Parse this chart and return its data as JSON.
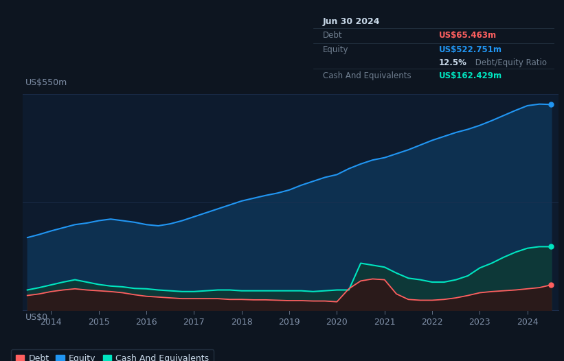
{
  "bg_color": "#0d1520",
  "plot_bg_color": "#0d1b2e",
  "ylabel_top": "US$550m",
  "ylabel_bottom": "US$0",
  "x_values": [
    2013.5,
    2013.75,
    2014.0,
    2014.25,
    2014.5,
    2014.75,
    2015.0,
    2015.25,
    2015.5,
    2015.75,
    2016.0,
    2016.25,
    2016.5,
    2016.75,
    2017.0,
    2017.25,
    2017.5,
    2017.75,
    2018.0,
    2018.25,
    2018.5,
    2018.75,
    2019.0,
    2019.25,
    2019.5,
    2019.75,
    2020.0,
    2020.25,
    2020.5,
    2020.75,
    2021.0,
    2021.25,
    2021.5,
    2021.75,
    2022.0,
    2022.25,
    2022.5,
    2022.75,
    2023.0,
    2023.25,
    2023.5,
    2023.75,
    2024.0,
    2024.25,
    2024.5
  ],
  "equity": [
    185,
    193,
    202,
    210,
    218,
    222,
    228,
    232,
    228,
    224,
    218,
    215,
    220,
    228,
    238,
    248,
    258,
    268,
    278,
    285,
    292,
    298,
    306,
    318,
    328,
    338,
    345,
    360,
    372,
    382,
    388,
    398,
    408,
    420,
    432,
    442,
    452,
    460,
    470,
    482,
    495,
    508,
    520,
    524,
    523
  ],
  "cash": [
    52,
    58,
    65,
    72,
    78,
    72,
    66,
    62,
    60,
    56,
    55,
    52,
    50,
    48,
    48,
    50,
    52,
    52,
    50,
    50,
    50,
    50,
    50,
    50,
    48,
    50,
    52,
    52,
    120,
    115,
    110,
    95,
    82,
    78,
    72,
    72,
    78,
    88,
    108,
    120,
    135,
    148,
    158,
    162,
    162
  ],
  "debt": [
    38,
    42,
    48,
    52,
    55,
    52,
    50,
    48,
    45,
    40,
    36,
    34,
    32,
    30,
    30,
    30,
    30,
    28,
    28,
    27,
    27,
    26,
    25,
    25,
    24,
    24,
    22,
    55,
    75,
    80,
    78,
    42,
    28,
    26,
    26,
    28,
    32,
    38,
    45,
    48,
    50,
    52,
    55,
    58,
    65
  ],
  "equity_color": "#2196f3",
  "equity_fill": "#0d3050",
  "cash_color": "#00e5c0",
  "cash_fill": "#0d3838",
  "debt_color": "#ff6060",
  "debt_fill": "#2a1a1a",
  "grid_color": "#1e3050",
  "text_color": "#8090a8",
  "table_bg": "#080e18",
  "table_border": "#283848",
  "info_date": "Jun 30 2024",
  "info_debt_label": "Debt",
  "info_debt_value": "US$65.463m",
  "info_equity_label": "Equity",
  "info_equity_value": "US$522.751m",
  "info_ratio_bold": "12.5%",
  "info_ratio_dim": " Debt/Equity Ratio",
  "info_cash_label": "Cash And Equivalents",
  "info_cash_value": "US$162.429m",
  "legend_debt": "Debt",
  "legend_equity": "Equity",
  "legend_cash": "Cash And Equivalents",
  "ylim": [
    0,
    550
  ]
}
